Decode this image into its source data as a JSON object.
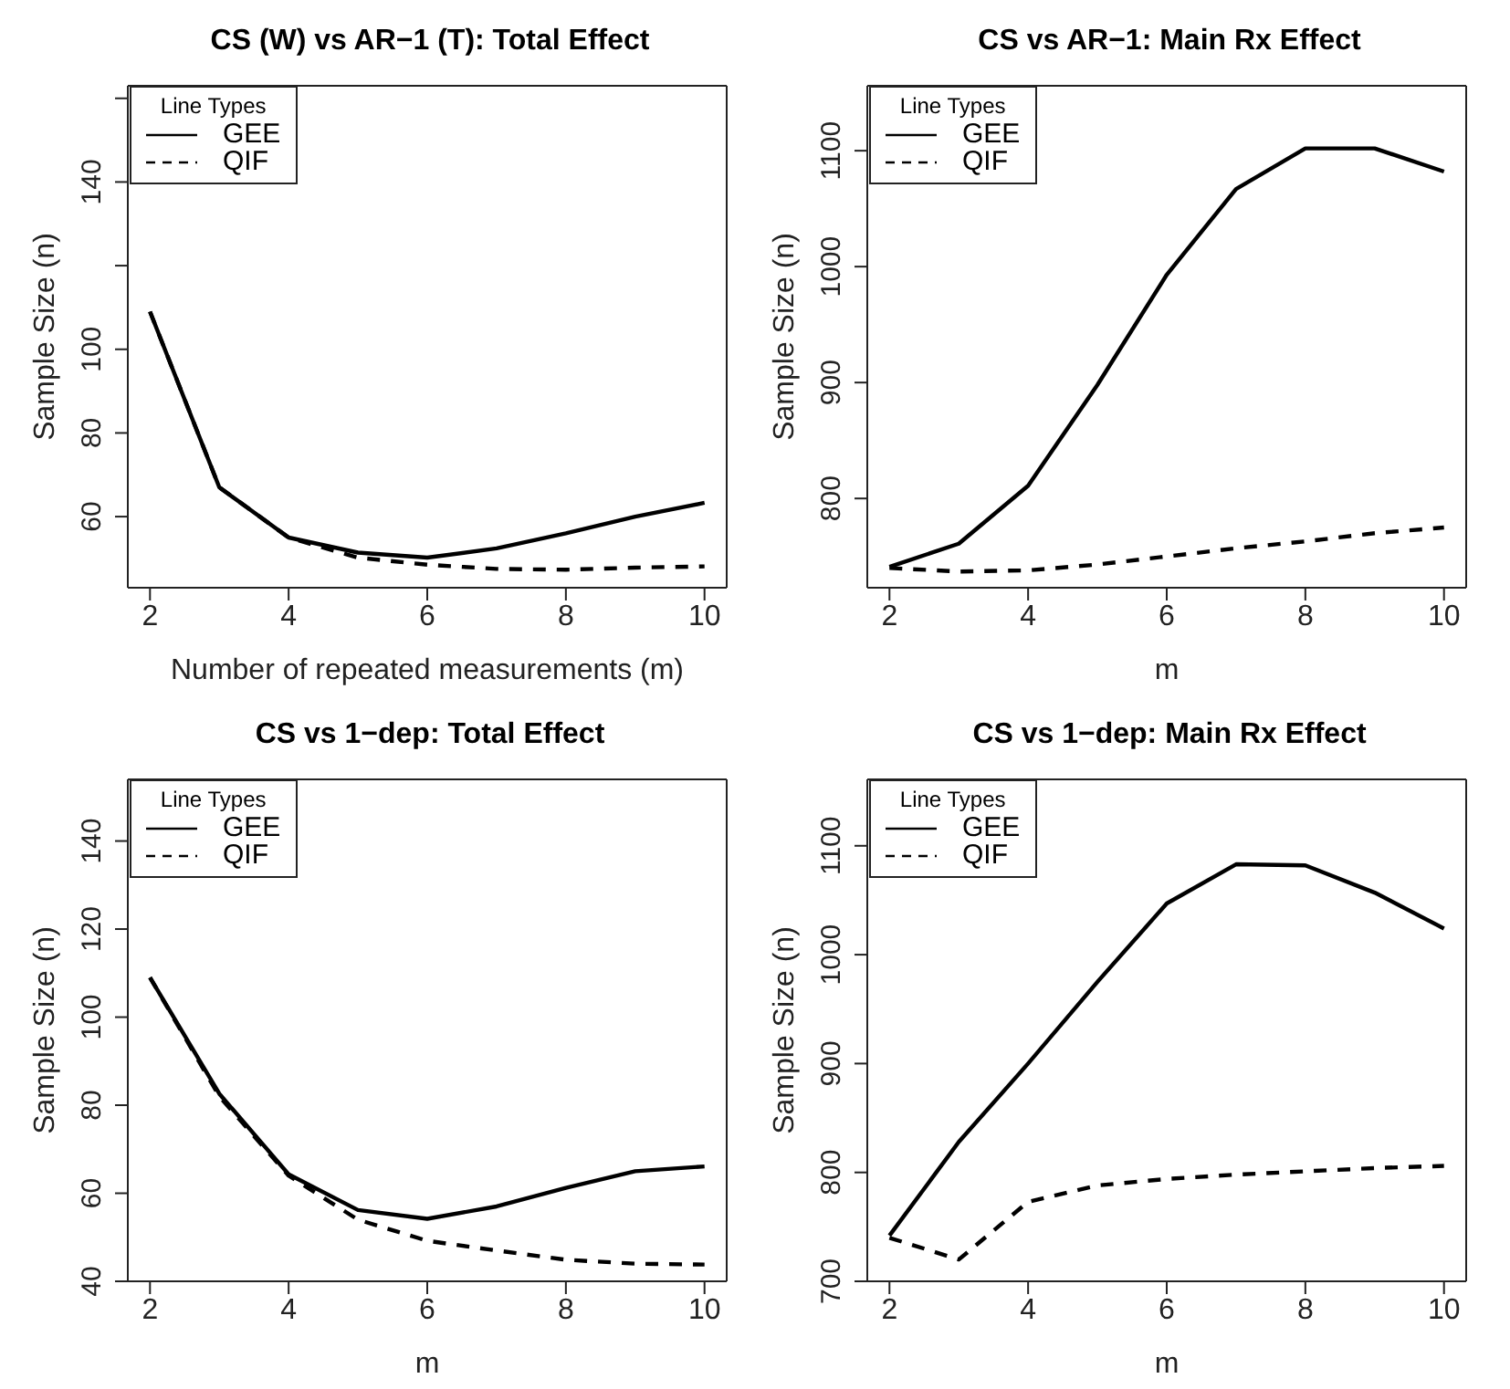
{
  "chart_data": [
    {
      "type": "line",
      "title": "CS (W) vs AR−1 (T): Total Effect",
      "xlabel": "Number of repeated measurements (m)",
      "ylabel": "Sample Size (n)",
      "legend_title": "Line Types",
      "legend": "top left",
      "x": [
        2,
        3,
        4,
        5,
        6,
        7,
        8,
        9,
        10
      ],
      "xlim": [
        1.68,
        10.32
      ],
      "xticks": [
        2,
        4,
        6,
        8,
        10
      ],
      "ylim": [
        43,
        163
      ],
      "yticks": [
        60,
        80,
        100,
        {
          "value": 120,
          "label": null
        },
        140,
        {
          "value": 160,
          "label": null
        }
      ],
      "series": [
        {
          "name": "GEE",
          "color": "#000000",
          "line_style": "solid",
          "values": [
            109,
            67,
            55,
            51.4,
            50.2,
            52.4,
            56,
            60,
            63.3
          ]
        },
        {
          "name": "QIF",
          "color": "#000000",
          "line_style": "dashed",
          "values": [
            109,
            67,
            55,
            50.2,
            48.5,
            47.5,
            47.3,
            47.8,
            48.1
          ]
        }
      ]
    },
    {
      "type": "line",
      "title": "CS vs AR−1: Main Rx Effect",
      "xlabel": "m",
      "ylabel": "Sample Size (n)",
      "legend_title": "Line Types",
      "legend": "top left",
      "x": [
        2,
        3,
        4,
        5,
        6,
        7,
        8,
        9,
        10
      ],
      "xlim": [
        1.68,
        10.32
      ],
      "xticks": [
        2,
        4,
        6,
        8,
        10
      ],
      "ylim": [
        723,
        1156
      ],
      "yticks": [
        800,
        900,
        1000,
        1100
      ],
      "series": [
        {
          "name": "GEE",
          "color": "#000000",
          "line_style": "solid",
          "values": [
            741,
            761,
            811,
            898,
            993,
            1067,
            1102,
            1102,
            1082
          ]
        },
        {
          "name": "QIF",
          "color": "#000000",
          "line_style": "dashed",
          "values": [
            740,
            737,
            738,
            743,
            750,
            757,
            763,
            770,
            775
          ]
        }
      ]
    },
    {
      "type": "line",
      "title": "CS vs 1−dep: Total Effect",
      "xlabel": "m",
      "ylabel": "Sample Size (n)",
      "legend_title": "Line Types",
      "legend": "top left",
      "x": [
        2,
        3,
        4,
        5,
        6,
        7,
        8,
        9,
        10
      ],
      "xlim": [
        1.68,
        10.32
      ],
      "xticks": [
        2,
        4,
        6,
        8,
        10
      ],
      "ylim": [
        40,
        154
      ],
      "yticks": [
        40,
        60,
        80,
        100,
        120,
        140
      ],
      "series": [
        {
          "name": "GEE",
          "color": "#000000",
          "line_style": "solid",
          "values": [
            109,
            82.6,
            64.3,
            56.2,
            54.2,
            57,
            61.2,
            65,
            66.1
          ]
        },
        {
          "name": "QIF",
          "color": "#000000",
          "line_style": "dashed",
          "values": [
            109,
            82,
            64,
            54,
            49.2,
            47,
            44.9,
            44,
            43.8
          ]
        }
      ]
    },
    {
      "type": "line",
      "title": "CS vs 1−dep: Main Rx Effect",
      "xlabel": "m",
      "ylabel": "Sample Size (n)",
      "legend_title": "Line Types",
      "legend": "top left",
      "x": [
        2,
        3,
        4,
        5,
        6,
        7,
        8,
        9,
        10
      ],
      "xlim": [
        1.68,
        10.32
      ],
      "xticks": [
        2,
        4,
        6,
        8,
        10
      ],
      "ylim": [
        700,
        1161
      ],
      "yticks": [
        700,
        800,
        900,
        1000,
        1100
      ],
      "series": [
        {
          "name": "GEE",
          "color": "#000000",
          "line_style": "solid",
          "values": [
            742,
            828,
            900,
            975,
            1047,
            1083,
            1082,
            1057,
            1024
          ]
        },
        {
          "name": "QIF",
          "color": "#000000",
          "line_style": "dashed",
          "values": [
            740,
            720,
            773,
            788,
            794,
            798,
            801,
            804,
            806
          ]
        }
      ]
    }
  ]
}
